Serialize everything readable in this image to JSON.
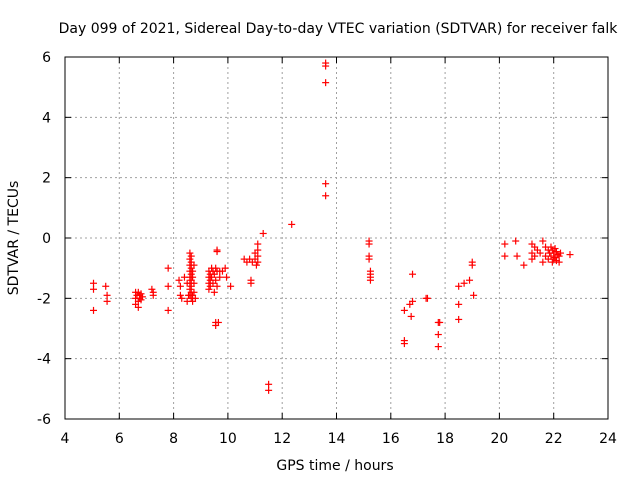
{
  "chart_data": {
    "type": "scatter",
    "title": "Day 099 of 2021, Sidereal Day-to-day VTEC variation (SDTVAR) for receiver falk",
    "xlabel": "GPS time / hours",
    "ylabel": "SDTVAR / TECUs",
    "xlim": [
      4,
      24
    ],
    "ylim": [
      -6,
      6
    ],
    "xticks": [
      4,
      6,
      8,
      10,
      12,
      14,
      16,
      18,
      20,
      22,
      24
    ],
    "yticks": [
      -6,
      -4,
      -2,
      0,
      2,
      4,
      6
    ],
    "xtick_labels": [
      "4",
      "6",
      "8",
      "10",
      "12",
      "14",
      "16",
      "18",
      "20",
      "22",
      "24"
    ],
    "ytick_labels": [
      "-6",
      "-4",
      "-2",
      "0",
      "2",
      "4",
      "6"
    ],
    "grid": true,
    "marker": "+",
    "marker_color": "#ff0000",
    "series": [
      {
        "name": "SDTVAR",
        "points": [
          [
            5.05,
            -1.5
          ],
          [
            5.05,
            -1.7
          ],
          [
            5.05,
            -2.4
          ],
          [
            5.5,
            -1.6
          ],
          [
            5.55,
            -1.9
          ],
          [
            5.55,
            -2.1
          ],
          [
            6.6,
            -1.8
          ],
          [
            6.6,
            -2.0
          ],
          [
            6.6,
            -2.2
          ],
          [
            6.65,
            -1.9
          ],
          [
            6.7,
            -1.8
          ],
          [
            6.7,
            -2.1
          ],
          [
            6.7,
            -2.3
          ],
          [
            6.75,
            -1.9
          ],
          [
            6.75,
            -2.0
          ],
          [
            6.8,
            -1.85
          ],
          [
            6.8,
            -2.05
          ],
          [
            6.85,
            -1.95
          ],
          [
            7.2,
            -1.7
          ],
          [
            7.25,
            -1.8
          ],
          [
            7.25,
            -1.9
          ],
          [
            7.8,
            -1.0
          ],
          [
            7.8,
            -1.6
          ],
          [
            7.8,
            -2.4
          ],
          [
            8.2,
            -1.4
          ],
          [
            8.25,
            -1.6
          ],
          [
            8.25,
            -1.9
          ],
          [
            8.3,
            -2.0
          ],
          [
            8.4,
            -1.3
          ],
          [
            8.5,
            -1.5
          ],
          [
            8.5,
            -2.1
          ],
          [
            8.55,
            -1.9
          ],
          [
            8.6,
            -0.5
          ],
          [
            8.6,
            -0.7
          ],
          [
            8.6,
            -0.9
          ],
          [
            8.6,
            -1.1
          ],
          [
            8.6,
            -1.3
          ],
          [
            8.6,
            -1.5
          ],
          [
            8.6,
            -1.7
          ],
          [
            8.6,
            -1.9
          ],
          [
            8.65,
            -0.6
          ],
          [
            8.65,
            -0.8
          ],
          [
            8.65,
            -1.0
          ],
          [
            8.65,
            -1.2
          ],
          [
            8.65,
            -1.4
          ],
          [
            8.65,
            -1.6
          ],
          [
            8.65,
            -1.8
          ],
          [
            8.65,
            -2.0
          ],
          [
            8.7,
            -1.1
          ],
          [
            8.7,
            -1.3
          ],
          [
            8.7,
            -1.9
          ],
          [
            8.7,
            -2.1
          ],
          [
            8.75,
            -0.9
          ],
          [
            8.75,
            -1.5
          ],
          [
            8.75,
            -1.8
          ],
          [
            8.8,
            -2.0
          ],
          [
            9.3,
            -1.1
          ],
          [
            9.3,
            -1.3
          ],
          [
            9.3,
            -1.5
          ],
          [
            9.3,
            -1.7
          ],
          [
            9.35,
            -1.2
          ],
          [
            9.35,
            -1.4
          ],
          [
            9.35,
            -1.6
          ],
          [
            9.4,
            -1.0
          ],
          [
            9.4,
            -1.3
          ],
          [
            9.45,
            -1.1
          ],
          [
            9.45,
            -1.5
          ],
          [
            9.5,
            -1.2
          ],
          [
            9.5,
            -1.8
          ],
          [
            9.55,
            -1.0
          ],
          [
            9.55,
            -1.4
          ],
          [
            9.55,
            -2.8
          ],
          [
            9.55,
            -2.9
          ],
          [
            9.6,
            -0.4
          ],
          [
            9.6,
            -0.45
          ],
          [
            9.6,
            -1.1
          ],
          [
            9.6,
            -1.6
          ],
          [
            9.65,
            -2.8
          ],
          [
            9.7,
            -1.1
          ],
          [
            9.7,
            -1.3
          ],
          [
            9.8,
            -1.1
          ],
          [
            9.9,
            -1.0
          ],
          [
            9.95,
            -1.3
          ],
          [
            10.1,
            -1.6
          ],
          [
            10.6,
            -0.7
          ],
          [
            10.7,
            -0.8
          ],
          [
            10.8,
            -0.7
          ],
          [
            10.85,
            -1.4
          ],
          [
            10.85,
            -1.5
          ],
          [
            10.9,
            -0.8
          ],
          [
            11.0,
            -0.5
          ],
          [
            11.0,
            -0.7
          ],
          [
            11.05,
            -0.9
          ],
          [
            11.1,
            -0.2
          ],
          [
            11.1,
            -0.4
          ],
          [
            11.1,
            -0.6
          ],
          [
            11.1,
            -0.8
          ],
          [
            11.3,
            0.15
          ],
          [
            11.5,
            -4.85
          ],
          [
            11.5,
            -5.05
          ],
          [
            12.35,
            0.45
          ],
          [
            13.6,
            5.8
          ],
          [
            13.6,
            5.7
          ],
          [
            13.6,
            5.15
          ],
          [
            13.6,
            1.8
          ],
          [
            13.6,
            1.4
          ],
          [
            15.2,
            -0.1
          ],
          [
            15.2,
            -0.2
          ],
          [
            15.2,
            -0.6
          ],
          [
            15.2,
            -0.7
          ],
          [
            15.25,
            -1.1
          ],
          [
            15.25,
            -1.2
          ],
          [
            15.25,
            -1.3
          ],
          [
            15.25,
            -1.4
          ],
          [
            16.5,
            -2.4
          ],
          [
            16.5,
            -3.4
          ],
          [
            16.5,
            -3.5
          ],
          [
            16.7,
            -2.2
          ],
          [
            16.75,
            -2.6
          ],
          [
            16.8,
            -1.2
          ],
          [
            16.8,
            -2.1
          ],
          [
            17.3,
            -2.0
          ],
          [
            17.35,
            -2.0
          ],
          [
            17.75,
            -2.8
          ],
          [
            17.75,
            -3.2
          ],
          [
            17.75,
            -3.6
          ],
          [
            17.8,
            -2.8
          ],
          [
            18.5,
            -1.6
          ],
          [
            18.5,
            -2.2
          ],
          [
            18.5,
            -2.7
          ],
          [
            18.7,
            -1.5
          ],
          [
            18.9,
            -1.4
          ],
          [
            19.0,
            -0.8
          ],
          [
            19.0,
            -0.9
          ],
          [
            19.05,
            -1.9
          ],
          [
            20.2,
            -0.2
          ],
          [
            20.2,
            -0.6
          ],
          [
            20.6,
            -0.1
          ],
          [
            20.65,
            -0.6
          ],
          [
            20.9,
            -0.9
          ],
          [
            21.2,
            -0.2
          ],
          [
            21.2,
            -0.5
          ],
          [
            21.2,
            -0.7
          ],
          [
            21.3,
            -0.3
          ],
          [
            21.3,
            -0.6
          ],
          [
            21.4,
            -0.4
          ],
          [
            21.5,
            -0.5
          ],
          [
            21.6,
            -0.1
          ],
          [
            21.6,
            -0.8
          ],
          [
            21.7,
            -0.3
          ],
          [
            21.7,
            -0.6
          ],
          [
            21.8,
            -0.4
          ],
          [
            21.8,
            -0.7
          ],
          [
            21.85,
            -0.5
          ],
          [
            21.9,
            -0.3
          ],
          [
            21.9,
            -0.6
          ],
          [
            21.95,
            -0.4
          ],
          [
            21.95,
            -0.8
          ],
          [
            22.0,
            -0.5
          ],
          [
            22.0,
            -0.7
          ],
          [
            22.05,
            -0.35
          ],
          [
            22.05,
            -0.65
          ],
          [
            22.1,
            -0.45
          ],
          [
            22.1,
            -0.75
          ],
          [
            22.15,
            -0.55
          ],
          [
            22.2,
            -0.6
          ],
          [
            22.2,
            -0.8
          ],
          [
            22.25,
            -0.5
          ],
          [
            22.6,
            -0.55
          ]
        ]
      }
    ]
  }
}
